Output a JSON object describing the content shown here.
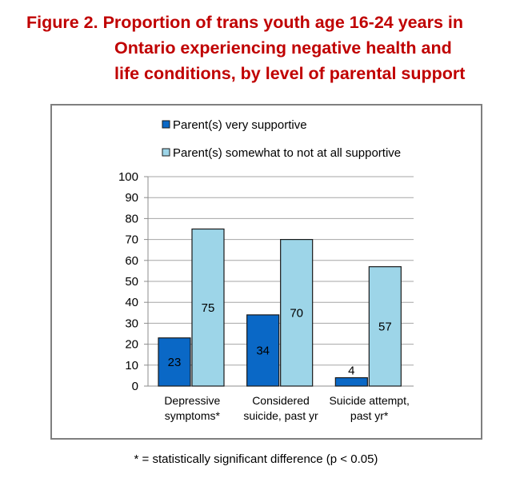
{
  "title_lines": [
    "Figure 2.  Proportion of trans youth age 16-24 years in",
    "Ontario experiencing negative health and",
    "life conditions, by level of parental support"
  ],
  "footnote": "* = statistically significant difference (p < 0.05)",
  "colors": {
    "title": "#c00000",
    "series_dark": "#0a68c6",
    "series_light": "#9dd5e8",
    "bar_edge": "#1a1a1a",
    "frame": "#7f7f7f"
  },
  "chart_data": {
    "type": "bar",
    "categories": [
      [
        "Depressive",
        "symptoms*"
      ],
      [
        "Considered",
        "suicide, past yr"
      ],
      [
        "Suicide attempt,",
        "past yr*"
      ]
    ],
    "series": [
      {
        "name": "Parent(s) very supportive",
        "values": [
          23,
          34,
          4
        ]
      },
      {
        "name": "Parent(s) somewhat to not at all supportive",
        "values": [
          75,
          70,
          57
        ]
      }
    ],
    "ylim": [
      0,
      100
    ],
    "yticks": [
      0,
      10,
      20,
      30,
      40,
      50,
      60,
      70,
      80,
      90,
      100
    ],
    "grid": true,
    "legend_position": "top",
    "data_labels": true
  }
}
